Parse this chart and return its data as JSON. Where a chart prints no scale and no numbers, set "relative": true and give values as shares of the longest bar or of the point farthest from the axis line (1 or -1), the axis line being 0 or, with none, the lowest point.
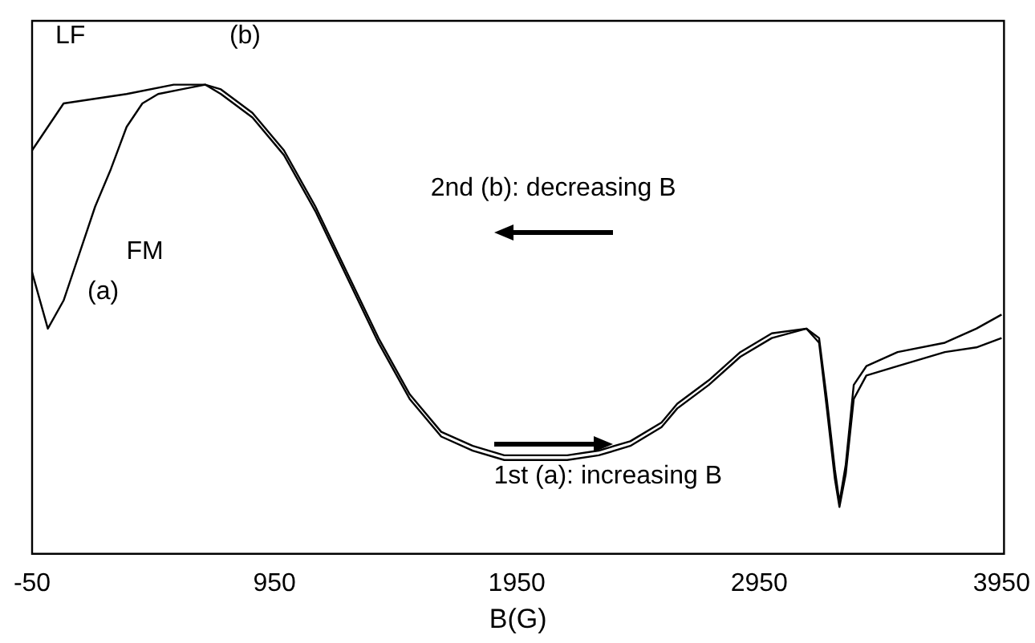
{
  "chart_data": {
    "type": "line",
    "xlabel": "B(G)",
    "relative": true,
    "xlim": [
      -50,
      3960
    ],
    "xticks": [
      -50,
      950,
      1950,
      2950,
      3950
    ],
    "grid": false,
    "legend": false,
    "marker": "none",
    "line_style": "solid",
    "annotations": [
      "LF",
      "(b)",
      "FM",
      "(a)",
      "2nd (b): decreasing B",
      "1st (a): increasing B"
    ],
    "series": [
      {
        "color": "#000000",
        "x": [
          -50,
          80,
          340,
          534,
          664,
          729,
          859,
          989,
          1119,
          1249,
          1379,
          1508,
          1638,
          1768,
          1898,
          2028,
          2158,
          2288,
          2418,
          2547,
          2612,
          2742,
          2872,
          3002,
          3145,
          3197,
          3229,
          3262,
          3281,
          3307,
          3340,
          3392,
          3521,
          3716,
          3846,
          3950
        ],
        "values": [
          0.86,
          0.96,
          0.98,
          1.0,
          1.0,
          0.99,
          0.94,
          0.86,
          0.74,
          0.6,
          0.46,
          0.34,
          0.26,
          0.23,
          0.21,
          0.21,
          0.21,
          0.22,
          0.24,
          0.28,
          0.32,
          0.37,
          0.43,
          0.47,
          0.48,
          0.46,
          0.33,
          0.18,
          0.11,
          0.19,
          0.36,
          0.4,
          0.43,
          0.45,
          0.48,
          0.51
        ]
      },
      {
        "color": "#000000",
        "x": [
          -50,
          15,
          80,
          145,
          210,
          275,
          340,
          405,
          470,
          567,
          664,
          729,
          859,
          989,
          1119,
          1249,
          1379,
          1508,
          1638,
          1768,
          1898,
          2028,
          2158,
          2288,
          2418,
          2547,
          2612,
          2742,
          2872,
          3002,
          3145,
          3197,
          3229,
          3262,
          3281,
          3307,
          3340,
          3392,
          3521,
          3716,
          3846,
          3950
        ],
        "values": [
          0.6,
          0.48,
          0.54,
          0.64,
          0.74,
          0.82,
          0.91,
          0.96,
          0.98,
          0.99,
          1.0,
          0.98,
          0.93,
          0.85,
          0.73,
          0.59,
          0.45,
          0.33,
          0.25,
          0.22,
          0.2,
          0.2,
          0.2,
          0.21,
          0.23,
          0.27,
          0.31,
          0.36,
          0.42,
          0.46,
          0.48,
          0.45,
          0.31,
          0.16,
          0.1,
          0.17,
          0.33,
          0.38,
          0.4,
          0.43,
          0.44,
          0.46
        ]
      }
    ]
  }
}
